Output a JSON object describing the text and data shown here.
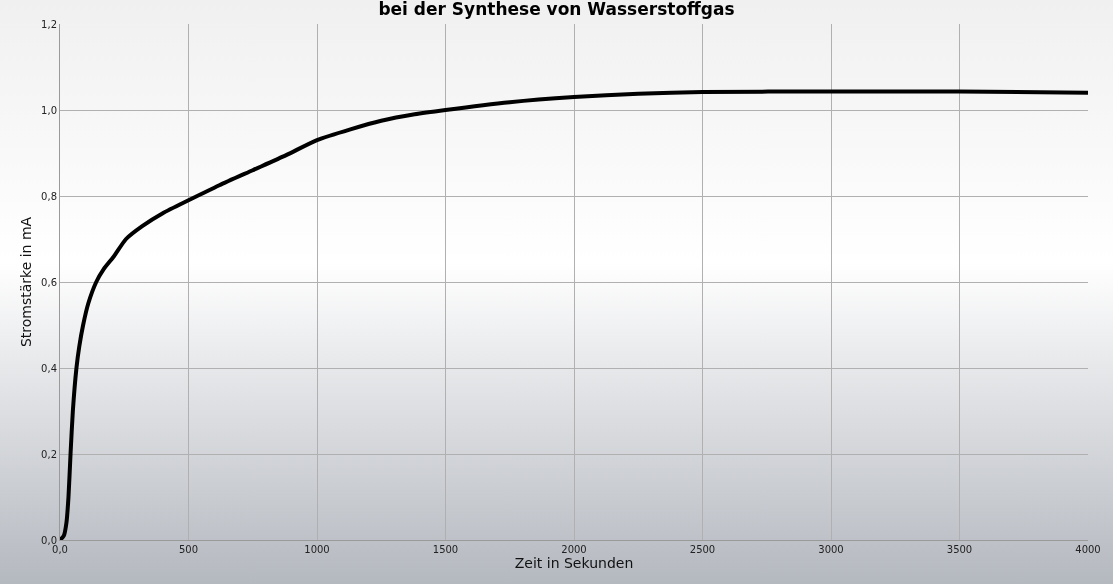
{
  "chart_data": {
    "type": "line",
    "title": "bei der Synthese von Wasserstoffgas",
    "xlabel": "Zeit in Sekunden",
    "ylabel": "Stromstärke in mA",
    "x": [
      0,
      15,
      25,
      33,
      41,
      50,
      64,
      75,
      90,
      110,
      141,
      170,
      210,
      257,
      320,
      400,
      500,
      620,
      750,
      880,
      1000,
      1130,
      1250,
      1380,
      1500,
      1750,
      2000,
      2250,
      2500,
      3000,
      3500,
      4000
    ],
    "series": [
      {
        "color": "#000000",
        "values": [
          0,
          0.01,
          0.04,
          0.1,
          0.2,
          0.3,
          0.4,
          0.45,
          0.5,
          0.55,
          0.6,
          0.63,
          0.66,
          0.7,
          0.73,
          0.76,
          0.79,
          0.825,
          0.86,
          0.895,
          0.93,
          0.955,
          0.975,
          0.99,
          1.0,
          1.018,
          1.03,
          1.038,
          1.042,
          1.043,
          1.043,
          1.04
        ]
      }
    ],
    "xlim": [
      0,
      4000
    ],
    "xticks": [
      {
        "value": 0,
        "label": "0,0"
      },
      500,
      1000,
      1500,
      2000,
      2500,
      3000,
      3500,
      4000
    ],
    "ylim": [
      0,
      1.2
    ],
    "yticks": [
      {
        "value": 0,
        "label": "0,0"
      },
      {
        "value": 0.2,
        "label": "0,2"
      },
      {
        "value": 0.4,
        "label": "0,4"
      },
      {
        "value": 0.6,
        "label": "0,6"
      },
      {
        "value": 0.8,
        "label": "0,8"
      },
      {
        "value": 1,
        "label": "1,0"
      },
      {
        "value": 1.2,
        "label": "1,2"
      }
    ],
    "grid": true,
    "marker": "none",
    "line_style": "solid"
  }
}
